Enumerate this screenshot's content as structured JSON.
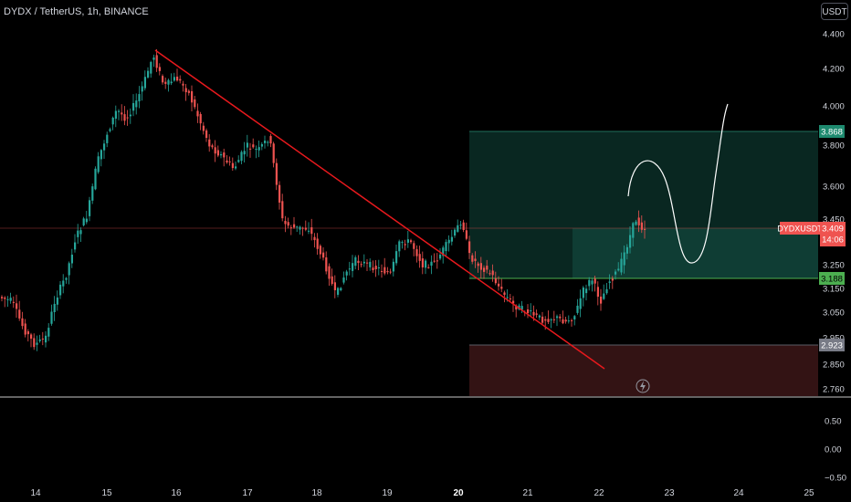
{
  "header": {
    "title": "DYDX / TetherUS, 1h, BINANCE",
    "currency_button": "USDT"
  },
  "chart_data": {
    "type": "candlestick",
    "symbol": "DYDXUSDT",
    "price_axis": {
      "ticks": [
        "4.400",
        "4.200",
        "4.000",
        "3.800",
        "3.600",
        "3.450",
        "3.250",
        "3.150",
        "3.050",
        "2.950",
        "2.850",
        "2.760"
      ]
    },
    "indicator_axis": {
      "ticks": [
        "0.50",
        "0.00",
        "−0.50"
      ]
    },
    "x_ticks": [
      "14",
      "15",
      "16",
      "17",
      "18",
      "19",
      "20",
      "21",
      "22",
      "23",
      "24",
      "25"
    ],
    "current_price": {
      "symbol_label": "DYDXUSDT",
      "price": "3.409",
      "countdown": "14:06"
    },
    "position": {
      "take_profit": "3.868",
      "entry": "3.188",
      "stop_loss": "2.923"
    },
    "colors": {
      "up": "#26a69a",
      "down": "#ef5350",
      "trendline": "#e8191d",
      "entry_line": "#4caf50",
      "profit_zone": "#0b2e27",
      "loss_zone": "#331314"
    }
  }
}
